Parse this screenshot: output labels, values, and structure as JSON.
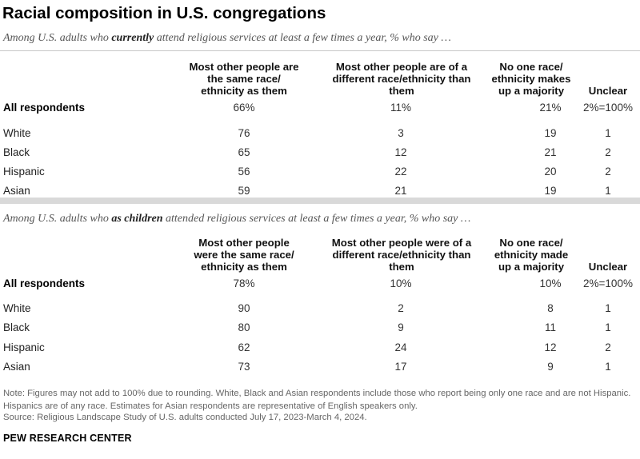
{
  "chart_data": {
    "type": "table",
    "title": "Racial composition in U.S. congregations",
    "tables": [
      {
        "subtitle_pre": "Among U.S. adults who ",
        "subtitle_em": "currently",
        "subtitle_post": " attend religious services at least a few times a year, % who say …",
        "headers": [
          "Most other people are the same race/ ethnicity as them",
          "Most other people are of a different race/ethnicity than them",
          "No one race/ ethnicity makes up a majority",
          "Unclear"
        ],
        "rows": [
          {
            "label": "All respondents",
            "values": [
              "66%",
              "11%",
              "21%",
              "2%=100%"
            ]
          },
          {
            "label": "White",
            "values": [
              "76",
              "3",
              "19",
              "1"
            ]
          },
          {
            "label": "Black",
            "values": [
              "65",
              "12",
              "21",
              "2"
            ]
          },
          {
            "label": "Hispanic",
            "values": [
              "56",
              "22",
              "20",
              "2"
            ]
          },
          {
            "label": "Asian",
            "values": [
              "59",
              "21",
              "19",
              "1"
            ]
          }
        ]
      },
      {
        "subtitle_pre": "Among U.S. adults who ",
        "subtitle_em": "as children",
        "subtitle_post": " attended religious services at least a few times a year, % who say …",
        "headers": [
          "Most other people were the same race/ ethnicity as them",
          "Most other people were of a different race/ethnicity than them",
          "No one race/ ethnicity made up a majority",
          "Unclear"
        ],
        "rows": [
          {
            "label": "All respondents",
            "values": [
              "78%",
              "10%",
              "10%",
              "2%=100%"
            ]
          },
          {
            "label": "White",
            "values": [
              "90",
              "2",
              "8",
              "1"
            ]
          },
          {
            "label": "Black",
            "values": [
              "80",
              "9",
              "11",
              "1"
            ]
          },
          {
            "label": "Hispanic",
            "values": [
              "62",
              "24",
              "12",
              "2"
            ]
          },
          {
            "label": "Asian",
            "values": [
              "73",
              "17",
              "9",
              "1"
            ]
          }
        ]
      }
    ]
  },
  "footer": {
    "note": "Note: Figures may not add to 100% due to rounding. White, Black and Asian respondents include those who report being only one race and are not Hispanic. Hispanics are of any race. Estimates for Asian respondents are representative of English speakers only.",
    "source": "Source: Religious Landscape Study of U.S. adults conducted July 17, 2023-March 4, 2024.",
    "brand": "PEW RESEARCH CENTER"
  }
}
